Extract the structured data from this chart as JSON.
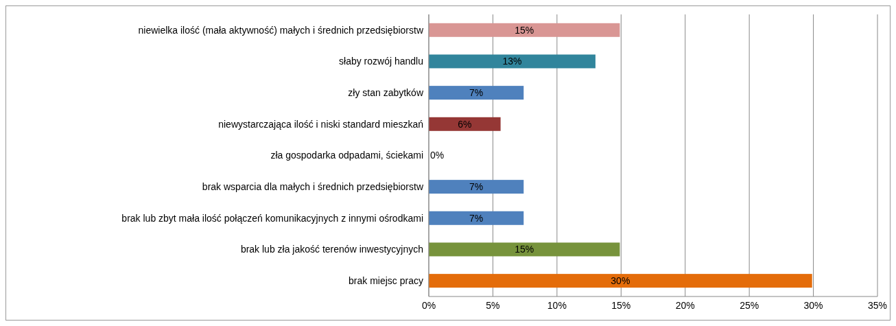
{
  "chart_data": {
    "type": "bar",
    "orientation": "horizontal",
    "categories": [
      "niewielka ilość (mała aktywność) małych i średnich przedsiębiorstw",
      "słaby rozwój handlu",
      "zły stan zabytków",
      "niewystarczająca ilość i niski standard mieszkań",
      "zła gospodarka odpadami, ściekami",
      "brak wsparcia dla małych i średnich przedsiębiorstw",
      "brak lub zbyt mała ilość połączeń komunikacyjnych z innymi ośrodkami",
      "brak lub zła jakość terenów inwestycyjnych",
      "brak miejsc pracy"
    ],
    "values": [
      14.9,
      13,
      7.4,
      5.6,
      0,
      7.4,
      7.4,
      14.9,
      29.9
    ],
    "value_labels": [
      "15%",
      "13%",
      "7%",
      "6%",
      "0%",
      "7%",
      "7%",
      "15%",
      "30%"
    ],
    "colors": [
      "#d99694",
      "#31859c",
      "#4f81bd",
      "#953735",
      "#4f81bd",
      "#4f81bd",
      "#4f81bd",
      "#77933c",
      "#e46c0a"
    ],
    "xlim": [
      0,
      35
    ],
    "xticks": [
      {
        "value": 0,
        "label": "0%"
      },
      {
        "value": 5,
        "label": "5%"
      },
      {
        "value": 10,
        "label": "10%"
      },
      {
        "value": 15,
        "label": "15%"
      },
      {
        "value": 20,
        "label": "20%"
      },
      {
        "value": 25,
        "label": "25%"
      },
      {
        "value": 30,
        "label": "30%"
      },
      {
        "value": 35,
        "label": "35%"
      }
    ],
    "grid": "x"
  }
}
